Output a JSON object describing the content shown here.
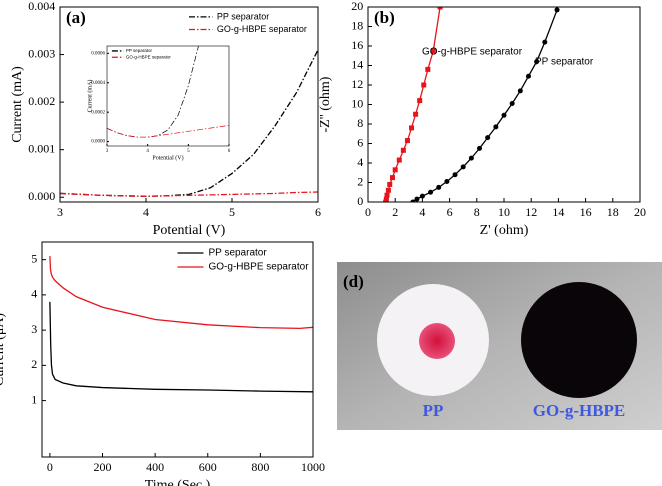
{
  "chart_data": [
    {
      "type": "line",
      "label": "(a)",
      "xlabel": "Potential (V)",
      "ylabel": "Current (mA)",
      "xlim": [
        3,
        6
      ],
      "xticks": [
        3,
        4,
        5,
        6
      ],
      "ylim": [
        -0.0001,
        0.004
      ],
      "yticks": [
        {
          "value": 0,
          "label": "0.000"
        },
        {
          "value": 0.001,
          "label": "0.001"
        },
        {
          "value": 0.002,
          "label": "0.002"
        },
        {
          "value": 0.003,
          "label": "0.003"
        },
        {
          "value": 0.004,
          "label": "0.004"
        }
      ],
      "legend": "upper right",
      "linestyle": "dashdot",
      "series": [
        {
          "name": "PP separator",
          "color": "#000000",
          "x": [
            3,
            3.5,
            4,
            4.25,
            4.5,
            4.75,
            5,
            5.25,
            5.5,
            5.75,
            6
          ],
          "values": [
            8e-05,
            4e-05,
            2e-05,
            3e-05,
            6e-05,
            0.0002,
            0.0005,
            0.0009,
            0.0015,
            0.0022,
            0.0031
          ]
        },
        {
          "name": "GO-g-HBPE separator",
          "color": "#e8141c",
          "x": [
            3,
            3.5,
            4,
            4.25,
            4.5,
            4.75,
            5,
            5.25,
            5.5,
            5.75,
            6
          ],
          "values": [
            8e-05,
            4e-05,
            2e-05,
            3e-05,
            4e-05,
            5e-05,
            6e-05,
            7e-05,
            8e-05,
            0.0001,
            0.00011
          ]
        }
      ]
    },
    {
      "type": "line",
      "xlabel": "Potential (V)",
      "ylabel": "Current (mA)",
      "xlim": [
        3,
        6
      ],
      "xticks": [
        3,
        4,
        5,
        6
      ],
      "ylim": [
        -3e-05,
        0.00065
      ],
      "yticks": [
        {
          "value": 0,
          "label": "0.0000"
        },
        {
          "value": 0.0002,
          "label": "0.0002"
        },
        {
          "value": 0.0004,
          "label": "0.0004"
        },
        {
          "value": 0.0006,
          "label": "0.0006"
        }
      ],
      "legend": "upper left",
      "linestyle": "dashdot",
      "series": [
        {
          "name": "PP separator",
          "color": "#000000",
          "x": [
            3,
            3.25,
            3.5,
            3.75,
            4,
            4.25,
            4.5,
            4.75,
            5,
            5.25
          ],
          "values": [
            9e-05,
            6e-05,
            4e-05,
            3e-05,
            3e-05,
            4e-05,
            8e-05,
            0.00018,
            0.00038,
            0.00065
          ]
        },
        {
          "name": "GO-g-HBPE separator",
          "color": "#e8141c",
          "x": [
            3,
            3.25,
            3.5,
            3.75,
            4,
            4.5,
            5,
            5.5,
            6
          ],
          "values": [
            9e-05,
            6e-05,
            4e-05,
            3e-05,
            3e-05,
            5e-05,
            7e-05,
            9e-05,
            0.00011
          ]
        }
      ]
    },
    {
      "type": "line",
      "label": "(b)",
      "xlabel": "Z' (ohm)",
      "ylabel": "-Z'' (ohm)",
      "xlim": [
        0,
        20
      ],
      "xticks": [
        0,
        2,
        4,
        6,
        8,
        10,
        12,
        14,
        16,
        18,
        20
      ],
      "ylim": [
        0,
        20
      ],
      "yticks": [
        0,
        2,
        4,
        6,
        8,
        10,
        12,
        14,
        16,
        18,
        20
      ],
      "legend": "inline",
      "linestyle": "solid",
      "markers": true,
      "series": [
        {
          "name": "GO-g-HBPE separator",
          "color": "#e8141c",
          "marker": "square",
          "x": [
            1.3,
            1.35,
            1.4,
            1.5,
            1.6,
            1.8,
            2.0,
            2.3,
            2.6,
            2.9,
            3.2,
            3.5,
            3.8,
            4.1,
            4.4,
            4.8,
            5.3
          ],
          "values": [
            0,
            0.3,
            0.7,
            1.2,
            1.8,
            2.5,
            3.3,
            4.3,
            5.3,
            6.3,
            7.6,
            9.0,
            10.4,
            12.0,
            13.6,
            15.5,
            20
          ]
        },
        {
          "name": "PP separator",
          "color": "#000000",
          "marker": "circle",
          "x": [
            3.3,
            3.6,
            4.0,
            4.6,
            5.2,
            5.8,
            6.4,
            7.0,
            7.6,
            8.2,
            8.8,
            9.4,
            10.0,
            10.6,
            11.2,
            11.8,
            12.4,
            13.0,
            13.9
          ],
          "values": [
            0,
            0.3,
            0.6,
            1.0,
            1.5,
            2.1,
            2.8,
            3.6,
            4.5,
            5.5,
            6.6,
            7.7,
            8.9,
            10.1,
            11.4,
            12.9,
            14.4,
            16.4,
            19.7
          ]
        }
      ]
    },
    {
      "type": "line",
      "xlabel": "Time (Sec.)",
      "ylabel": "Current (μA)",
      "xlim": [
        -30,
        1000
      ],
      "xticks": [
        0,
        200,
        400,
        600,
        800,
        1000
      ],
      "ylim": [
        -0.6,
        5.5
      ],
      "yticks": [
        1,
        2,
        3,
        4,
        5
      ],
      "legend": "upper right",
      "linestyle": "solid",
      "series": [
        {
          "name": "PP separator",
          "color": "#000000",
          "x": [
            0,
            3,
            6,
            10,
            20,
            50,
            100,
            200,
            400,
            600,
            800,
            1000
          ],
          "values": [
            3.8,
            2.6,
            2.0,
            1.75,
            1.6,
            1.5,
            1.42,
            1.37,
            1.32,
            1.3,
            1.27,
            1.25
          ]
        },
        {
          "name": "GO-g-HBPE separator",
          "color": "#e8141c",
          "x": [
            0,
            2,
            5,
            10,
            20,
            50,
            100,
            200,
            400,
            600,
            800,
            950,
            1000
          ],
          "values": [
            5.1,
            4.75,
            4.6,
            4.5,
            4.4,
            4.2,
            3.95,
            3.65,
            3.3,
            3.15,
            3.07,
            3.05,
            3.08
          ]
        }
      ]
    }
  ],
  "photo": {
    "label": "(d)",
    "captions": [
      "PP",
      "GO-g-HBPE"
    ]
  }
}
